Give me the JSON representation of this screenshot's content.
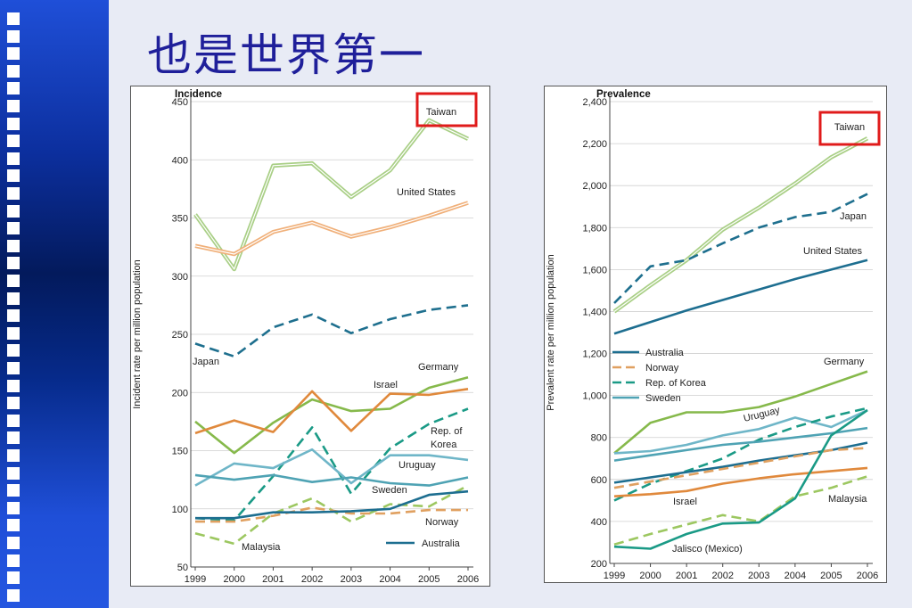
{
  "slide": {
    "title": "也是世界第一"
  },
  "colors": {
    "taiwan": "#a9cf86",
    "united_states": "#f0b07a",
    "japan": "#1e6f8e",
    "germany": "#86b94b",
    "israel": "#e0893c",
    "korea": "#1a9a86",
    "uruguay": "#6fb6c8",
    "sweden": "#4fa3b4",
    "malaysia": "#9cc760",
    "norway": "#e0a060",
    "australia": "#1d6e90",
    "jalisco": "#1a9a86",
    "highlight": "#e01b1b"
  },
  "chart_data": [
    {
      "type": "line",
      "title": "Incidence",
      "ylabel": "Incident rate per million population",
      "xlabel": "",
      "x": [
        "1999",
        "2000",
        "2001",
        "2002",
        "2003",
        "2004",
        "2005",
        "2006"
      ],
      "ylim": [
        50,
        450
      ],
      "yticks": [
        "50",
        "100",
        "150",
        "200",
        "250",
        "300",
        "350",
        "400",
        "450"
      ],
      "highlight_label": "Taiwan",
      "series": [
        {
          "name": "Taiwan",
          "key": "taiwan",
          "style": "double",
          "values": [
            353,
            306,
            395,
            397,
            368,
            391,
            434,
            418
          ]
        },
        {
          "name": "United States",
          "key": "united_states",
          "style": "double",
          "values": [
            326,
            319,
            338,
            346,
            334,
            342,
            352,
            363
          ]
        },
        {
          "name": "Japan",
          "key": "japan",
          "style": "dash",
          "values": [
            242,
            231,
            256,
            267,
            251,
            263,
            271,
            275
          ]
        },
        {
          "name": "Germany",
          "key": "germany",
          "style": "solid",
          "values": [
            175,
            148,
            174,
            194,
            184,
            186,
            204,
            213
          ]
        },
        {
          "name": "Israel",
          "key": "israel",
          "style": "solid",
          "values": [
            165,
            176,
            166,
            201,
            167,
            199,
            198,
            203
          ]
        },
        {
          "name": "Rep. of Korea",
          "key": "korea",
          "style": "dash",
          "values": [
            92,
            90,
            128,
            170,
            113,
            152,
            173,
            186
          ]
        },
        {
          "name": "Uruguay",
          "key": "uruguay",
          "style": "solid",
          "values": [
            120,
            139,
            135,
            151,
            122,
            146,
            146,
            142
          ]
        },
        {
          "name": "Sweden",
          "key": "sweden",
          "style": "solid",
          "values": [
            129,
            125,
            129,
            123,
            127,
            122,
            120,
            127
          ]
        },
        {
          "name": "Malaysia",
          "key": "malaysia",
          "style": "dash",
          "values": [
            79,
            70,
            96,
            109,
            89,
            104,
            102,
            120
          ]
        },
        {
          "name": "Norway",
          "key": "norway",
          "style": "dash",
          "values": [
            89,
            89,
            94,
            101,
            96,
            96,
            99,
            99
          ]
        },
        {
          "name": "Australia",
          "key": "australia",
          "style": "solid",
          "values": [
            92,
            92,
            97,
            97,
            98,
            100,
            112,
            115
          ]
        }
      ],
      "labels": [
        {
          "text": "Taiwan",
          "series": "taiwan"
        },
        {
          "text": "United States",
          "series": "united_states"
        },
        {
          "text": "Japan",
          "series": "japan"
        },
        {
          "text": "Germany",
          "series": "germany"
        },
        {
          "text": "Israel",
          "series": "israel"
        },
        {
          "text": "Rep. of",
          "series": "korea"
        },
        {
          "text": "Korea",
          "series": "korea"
        },
        {
          "text": "Uruguay",
          "series": "uruguay"
        },
        {
          "text": "Sweden",
          "series": "sweden"
        },
        {
          "text": "Norway",
          "series": "norway"
        },
        {
          "text": "Malaysia",
          "series": "malaysia"
        },
        {
          "text": "Australia",
          "series": "australia"
        }
      ]
    },
    {
      "type": "line",
      "title": "Prevalence",
      "ylabel": "Prevalent rate per million population",
      "xlabel": "",
      "x": [
        "1999",
        "2000",
        "2001",
        "2002",
        "2003",
        "2004",
        "2005",
        "2006"
      ],
      "ylim": [
        200,
        2400
      ],
      "yticks": [
        "200",
        "400",
        "600",
        "800",
        "1,000",
        "1,200",
        "1,400",
        "1,600",
        "1,800",
        "2,000",
        "2,200",
        "2,400"
      ],
      "highlight_label": "Taiwan",
      "legend": [
        "Australia",
        "Norway",
        "Rep. of Korea",
        "Sweden"
      ],
      "legend_position": "left-middle",
      "series": [
        {
          "name": "Taiwan",
          "key": "taiwan",
          "style": "double",
          "values": [
            1400,
            1525,
            1645,
            1790,
            1895,
            2010,
            2135,
            2225
          ]
        },
        {
          "name": "Japan",
          "key": "japan",
          "style": "dash",
          "values": [
            1440,
            1615,
            1645,
            1725,
            1800,
            1850,
            1875,
            1960
          ]
        },
        {
          "name": "United States",
          "key": "australia",
          "style": "solid",
          "values": [
            1295,
            1350,
            1405,
            1455,
            1505,
            1555,
            1600,
            1645
          ]
        },
        {
          "name": "Germany",
          "key": "germany",
          "style": "solid",
          "values": [
            725,
            870,
            920,
            920,
            945,
            995,
            1055,
            1115
          ]
        },
        {
          "name": "Uruguay",
          "key": "uruguay",
          "style": "solid",
          "values": [
            725,
            735,
            765,
            810,
            840,
            895,
            850,
            930
          ]
        },
        {
          "name": "Rep. of Korea",
          "key": "korea",
          "style": "dash",
          "values": [
            500,
            580,
            640,
            700,
            790,
            850,
            900,
            940
          ]
        },
        {
          "name": "Sweden",
          "key": "sweden",
          "style": "solid",
          "values": [
            690,
            715,
            740,
            765,
            780,
            800,
            820,
            845
          ]
        },
        {
          "name": "Australia",
          "key": "australia",
          "style": "solid",
          "values": [
            585,
            610,
            635,
            660,
            690,
            715,
            740,
            775
          ]
        },
        {
          "name": "Norway",
          "key": "norway",
          "style": "dash",
          "values": [
            560,
            590,
            620,
            650,
            680,
            710,
            740,
            750
          ]
        },
        {
          "name": "Israel",
          "key": "israel",
          "style": "solid",
          "values": [
            520,
            530,
            545,
            580,
            605,
            625,
            640,
            655
          ]
        },
        {
          "name": "Malaysia",
          "key": "malaysia",
          "style": "dash",
          "values": [
            290,
            340,
            385,
            430,
            400,
            520,
            560,
            615
          ]
        },
        {
          "name": "Jalisco (Mexico)",
          "key": "jalisco",
          "style": "solid",
          "values": [
            280,
            270,
            340,
            390,
            395,
            510,
            810,
            930
          ]
        }
      ],
      "labels": [
        {
          "text": "Taiwan",
          "series": "taiwan"
        },
        {
          "text": "Japan",
          "series": "japan"
        },
        {
          "text": "United States",
          "series": "australia"
        },
        {
          "text": "Germany",
          "series": "germany"
        },
        {
          "text": "Uruguay",
          "series": "uruguay"
        },
        {
          "text": "Israel",
          "series": "israel"
        },
        {
          "text": "Malaysia",
          "series": "malaysia"
        },
        {
          "text": "Jalisco (Mexico)",
          "series": "jalisco"
        }
      ]
    }
  ]
}
